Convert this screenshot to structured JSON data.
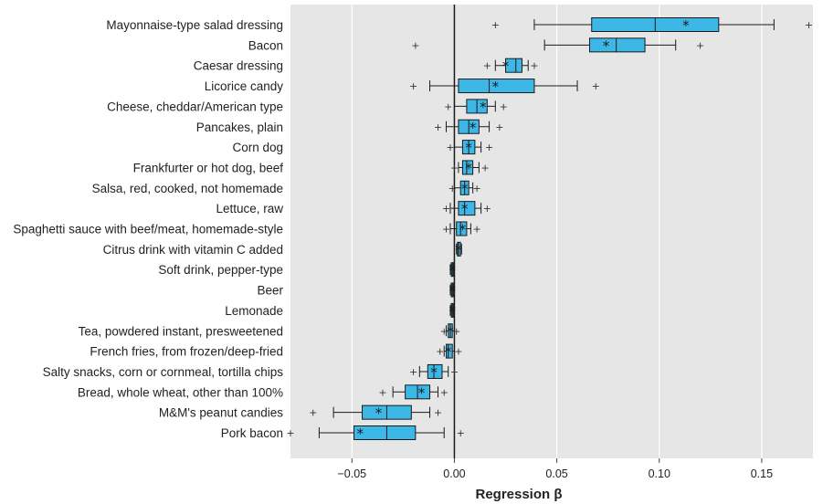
{
  "chart_data": {
    "type": "boxplot",
    "xlabel": "Regression β",
    "xlim": [
      -0.08,
      0.175
    ],
    "x_ticks": [
      "−0.05",
      "0.00",
      "0.05",
      "0.10",
      "0.15"
    ],
    "x_tick_values": [
      -0.05,
      0,
      0.05,
      0.1,
      0.15
    ],
    "grid": "vertical",
    "reference_line": 0,
    "colors": {
      "box_fill": "#3cb7e6",
      "panel_bg": "#e6e6e6",
      "grid": "#ffffff",
      "edge": "#1a1a1a"
    },
    "categories": [
      "Mayonnaise-type salad dressing",
      "Bacon",
      "Caesar dressing",
      "Licorice candy",
      "Cheese, cheddar/American type",
      "Pancakes, plain",
      "Corn dog",
      "Frankfurter or hot dog, beef",
      "Salsa, red, cooked, not homemade",
      "Lettuce, raw",
      "Spaghetti sauce with beef/meat, homemade-style",
      "Citrus drink with vitamin C added",
      "Soft drink, pepper-type",
      "Beer",
      "Lemonade",
      "Tea, powdered instant, presweetened",
      "French fries, from frozen/deep-fried",
      "Salty snacks, corn or cornmeal, tortilla chips",
      "Bread, whole wheat, other than 100%",
      "M&M's peanut candies",
      "Pork bacon"
    ],
    "boxes": [
      {
        "whisker_low": 0.039,
        "q1": 0.067,
        "median": 0.098,
        "q3": 0.129,
        "whisker_high": 0.156,
        "mean": 0.113,
        "outliers": [
          0.02,
          0.173
        ]
      },
      {
        "whisker_low": 0.044,
        "q1": 0.066,
        "median": 0.079,
        "q3": 0.093,
        "whisker_high": 0.108,
        "mean": 0.074,
        "outliers": [
          -0.019,
          0.12
        ]
      },
      {
        "whisker_low": 0.02,
        "q1": 0.025,
        "median": 0.03,
        "q3": 0.033,
        "whisker_high": 0.036,
        "mean": 0.025,
        "outliers": [
          0.016,
          0.039
        ]
      },
      {
        "whisker_low": -0.012,
        "q1": 0.002,
        "median": 0.017,
        "q3": 0.039,
        "whisker_high": 0.06,
        "mean": 0.02,
        "outliers": [
          -0.02,
          0.069
        ]
      },
      {
        "whisker_low": 0.0,
        "q1": 0.006,
        "median": 0.011,
        "q3": 0.016,
        "whisker_high": 0.02,
        "mean": 0.014,
        "outliers": [
          -0.003,
          0.024
        ]
      },
      {
        "whisker_low": -0.004,
        "q1": 0.002,
        "median": 0.007,
        "q3": 0.012,
        "whisker_high": 0.017,
        "mean": 0.009,
        "outliers": [
          -0.008,
          0.022
        ]
      },
      {
        "whisker_low": 0.0,
        "q1": 0.004,
        "median": 0.007,
        "q3": 0.01,
        "whisker_high": 0.013,
        "mean": 0.007,
        "outliers": [
          -0.002,
          0.017
        ]
      },
      {
        "whisker_low": 0.002,
        "q1": 0.004,
        "median": 0.006,
        "q3": 0.009,
        "whisker_high": 0.012,
        "mean": 0.007,
        "outliers": [
          0.0,
          0.015
        ]
      },
      {
        "whisker_low": 0.0,
        "q1": 0.003,
        "median": 0.005,
        "q3": 0.007,
        "whisker_high": 0.009,
        "mean": 0.005,
        "outliers": [
          -0.001,
          0.011
        ]
      },
      {
        "whisker_low": -0.002,
        "q1": 0.002,
        "median": 0.005,
        "q3": 0.01,
        "whisker_high": 0.013,
        "mean": 0.005,
        "outliers": [
          -0.004,
          0.016
        ]
      },
      {
        "whisker_low": -0.002,
        "q1": 0.001,
        "median": 0.003,
        "q3": 0.006,
        "whisker_high": 0.008,
        "mean": 0.004,
        "outliers": [
          -0.004,
          0.011
        ]
      },
      {
        "whisker_low": 0.001,
        "q1": 0.0015,
        "median": 0.002,
        "q3": 0.003,
        "whisker_high": 0.0035,
        "mean": 0.002,
        "outliers": []
      },
      {
        "whisker_low": -0.002,
        "q1": -0.0015,
        "median": -0.001,
        "q3": -0.0005,
        "whisker_high": 0.0,
        "mean": -0.001,
        "outliers": []
      },
      {
        "whisker_low": -0.002,
        "q1": -0.0015,
        "median": -0.001,
        "q3": -0.0005,
        "whisker_high": 0.0,
        "mean": -0.001,
        "outliers": []
      },
      {
        "whisker_low": -0.002,
        "q1": -0.0015,
        "median": -0.001,
        "q3": -0.0005,
        "whisker_high": 0.0,
        "mean": -0.001,
        "outliers": []
      },
      {
        "whisker_low": -0.004,
        "q1": -0.003,
        "median": -0.002,
        "q3": -0.001,
        "whisker_high": 0.0,
        "mean": -0.002,
        "outliers": [
          -0.005,
          0.001
        ]
      },
      {
        "whisker_low": -0.005,
        "q1": -0.004,
        "median": -0.003,
        "q3": -0.001,
        "whisker_high": 0.0,
        "mean": -0.003,
        "outliers": [
          -0.007,
          0.002
        ]
      },
      {
        "whisker_low": -0.017,
        "q1": -0.013,
        "median": -0.01,
        "q3": -0.006,
        "whisker_high": -0.003,
        "mean": -0.01,
        "outliers": [
          -0.02,
          0.0
        ]
      },
      {
        "whisker_low": -0.03,
        "q1": -0.024,
        "median": -0.018,
        "q3": -0.012,
        "whisker_high": -0.008,
        "mean": -0.016,
        "outliers": [
          -0.035,
          -0.005
        ]
      },
      {
        "whisker_low": -0.059,
        "q1": -0.045,
        "median": -0.033,
        "q3": -0.021,
        "whisker_high": -0.012,
        "mean": -0.037,
        "outliers": [
          -0.069,
          -0.008
        ]
      },
      {
        "whisker_low": -0.066,
        "q1": -0.049,
        "median": -0.033,
        "q3": -0.019,
        "whisker_high": -0.005,
        "mean": -0.046,
        "outliers": [
          -0.08,
          0.003
        ]
      }
    ]
  }
}
